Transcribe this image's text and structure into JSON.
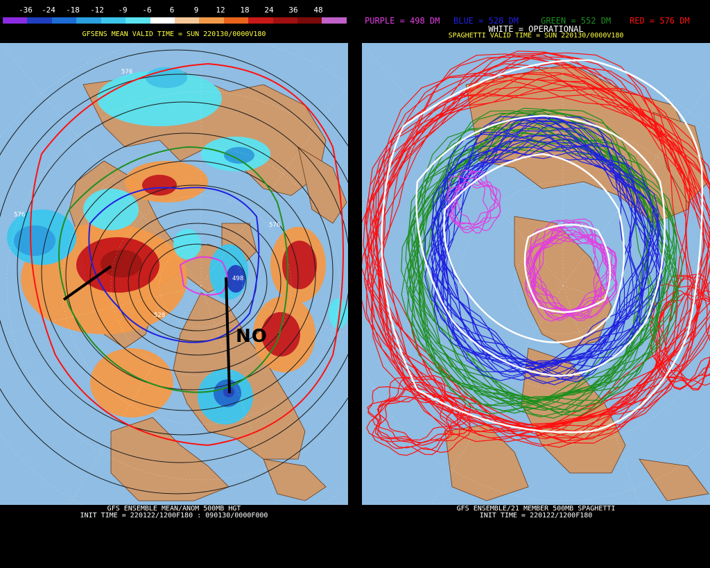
{
  "left": {
    "scale_labels": [
      "-36",
      "-24",
      "-18",
      "-12",
      "-9",
      "-6",
      "6",
      "9",
      "12",
      "18",
      "24",
      "36",
      "48"
    ],
    "scale_colors": [
      "#8a2be2",
      "#1f3fbf",
      "#1c6cd4",
      "#2aa0e0",
      "#3cc6ee",
      "#5ae3f1",
      "#ffffff",
      "#f7c99a",
      "#f39a4a",
      "#e8641c",
      "#c81818",
      "#a00f0f",
      "#7a0a0a",
      "#c060c8"
    ],
    "title": "GFSENS MEAN VALID TIME = SUN 220130/0000V180",
    "footer_line1": "GFS ENSEMBLE MEAN/ANOM 500MB HGT",
    "footer_line2": "INIT TIME = 220122/1200F180 : 090130/0000F000",
    "annotation": "NO",
    "contour_labels": [
      "576",
      "576",
      "576",
      "498",
      "528"
    ]
  },
  "right": {
    "legend": {
      "purple": "PURPLE = 498 DM",
      "blue": "BLUE = 528 DM",
      "green": "GREEN = 552 DM",
      "red": "RED = 576 DM",
      "white": "WHITE = OPERATIONAL"
    },
    "title": "SPAGHETTI VALID TIME = SUN 220130/0000V180",
    "footer_line1": "GFS ENSEMBLE/21 MEMBER 500MB SPAGHETTI",
    "footer_line2": "INIT TIME = 220122/1200F180"
  },
  "colors": {
    "background": "#000000",
    "ocean": "#8fbde3",
    "land": "#cd9a6e",
    "title_yellow": "#ffff40",
    "footer_white": "#ffffff",
    "purple": "#e23ce2",
    "blue": "#2020e0",
    "green": "#1f8f1f",
    "red": "#ff1010",
    "white": "#ffffff"
  }
}
